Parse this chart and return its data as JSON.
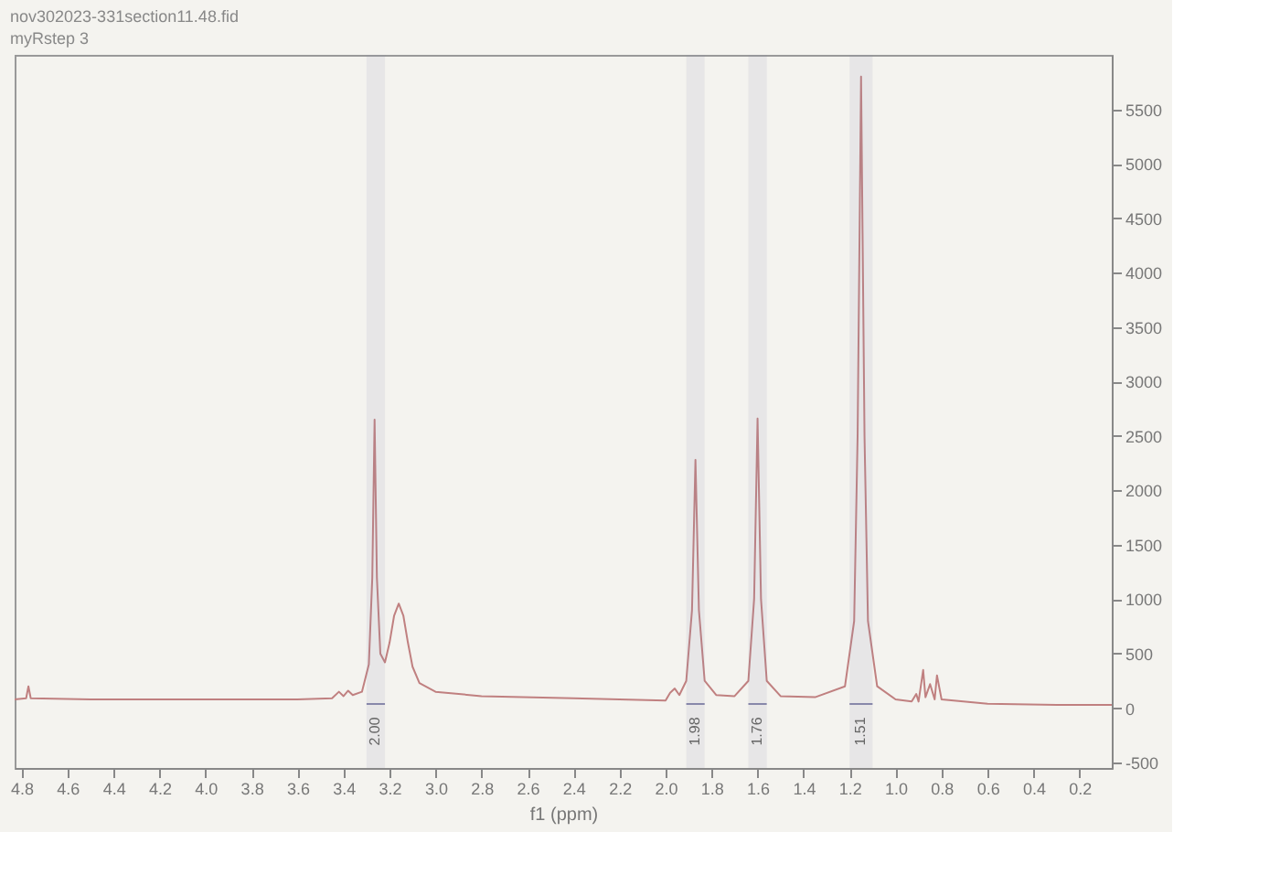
{
  "chart_data": {
    "type": "line",
    "title": "nov302023-331section11.48.fid",
    "subtitle": "myRstep 3",
    "xlabel": "f1 (ppm)",
    "xlim": [
      4.83,
      0.06
    ],
    "ylim": [
      -550,
      6000
    ],
    "xticks": [
      4.8,
      4.6,
      4.4,
      4.2,
      {
        "value": 4,
        "label": "4.0"
      },
      3.8,
      3.6,
      3.4,
      3.2,
      {
        "value": 3,
        "label": "3.0"
      },
      2.8,
      2.6,
      2.4,
      2.2,
      {
        "value": 2,
        "label": "2.0"
      },
      1.8,
      1.6,
      1.4,
      1.2,
      {
        "value": 1,
        "label": "1.0"
      },
      0.8,
      0.6,
      0.4,
      0.2
    ],
    "yticks": [
      -500,
      0,
      500,
      1000,
      1500,
      2000,
      2500,
      3000,
      3500,
      4000,
      4500,
      5000,
      5500
    ],
    "grid": false,
    "marker": "none",
    "line_style": "solid",
    "series": [
      {
        "color": "#c08080",
        "x": [
          4.83,
          4.78,
          4.77,
          4.76,
          4.5,
          4.0,
          3.6,
          3.45,
          3.42,
          3.4,
          3.38,
          3.36,
          3.32,
          3.29,
          3.275,
          3.265,
          3.255,
          3.24,
          3.22,
          3.2,
          3.18,
          3.16,
          3.14,
          3.12,
          3.1,
          3.07,
          3.0,
          2.8,
          2.4,
          2.0,
          1.98,
          1.96,
          1.94,
          1.91,
          1.885,
          1.87,
          1.855,
          1.83,
          1.78,
          1.7,
          1.64,
          1.615,
          1.6,
          1.585,
          1.56,
          1.5,
          1.35,
          1.22,
          1.18,
          1.165,
          1.15,
          1.135,
          1.12,
          1.08,
          1.0,
          0.93,
          0.91,
          0.9,
          0.88,
          0.87,
          0.85,
          0.83,
          0.82,
          0.8,
          0.6,
          0.3,
          0.06
        ],
        "values": [
          80,
          90,
          200,
          90,
          80,
          80,
          80,
          90,
          150,
          110,
          160,
          120,
          150,
          400,
          1200,
          2650,
          1200,
          500,
          420,
          600,
          850,
          960,
          850,
          600,
          380,
          230,
          150,
          110,
          90,
          70,
          140,
          180,
          120,
          250,
          900,
          2280,
          900,
          250,
          120,
          110,
          250,
          1000,
          2660,
          1000,
          250,
          110,
          100,
          200,
          800,
          2500,
          5800,
          2500,
          800,
          200,
          80,
          60,
          130,
          60,
          350,
          100,
          220,
          80,
          300,
          80,
          40,
          30,
          30
        ]
      }
    ],
    "bands": [
      {
        "axis": "x",
        "from": 3.3,
        "to": 3.22,
        "label": "2.00"
      },
      {
        "axis": "x",
        "from": 1.91,
        "to": 1.83,
        "label": "1.98"
      },
      {
        "axis": "x",
        "from": 1.64,
        "to": 1.56,
        "label": "1.76"
      },
      {
        "axis": "x",
        "from": 1.2,
        "to": 1.1,
        "label": "1.51"
      }
    ]
  }
}
